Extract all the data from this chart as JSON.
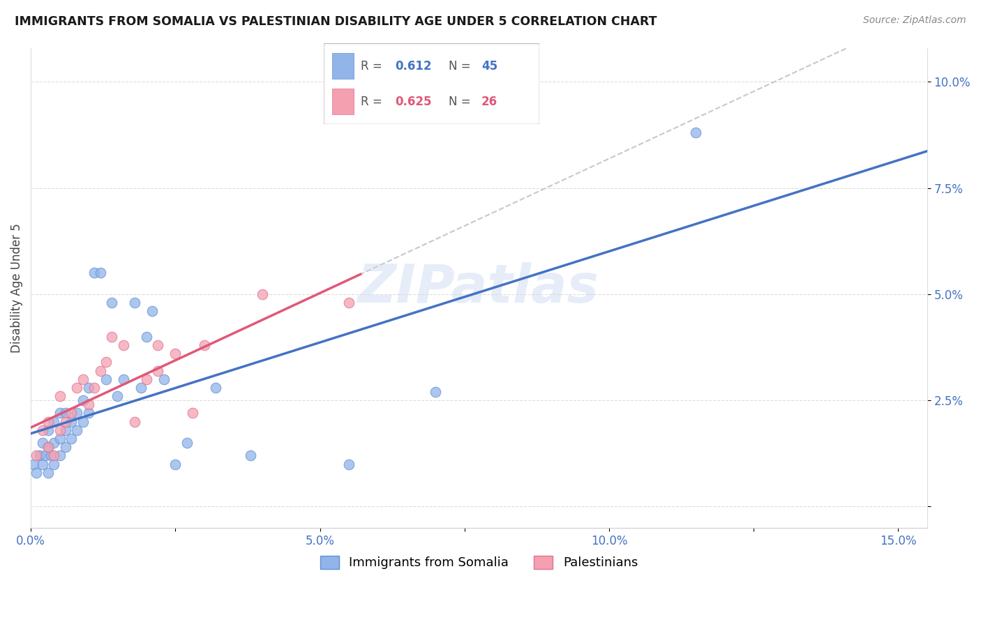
{
  "title": "IMMIGRANTS FROM SOMALIA VS PALESTINIAN DISABILITY AGE UNDER 5 CORRELATION CHART",
  "source": "Source: ZipAtlas.com",
  "ylabel": "Disability Age Under 5",
  "xlim": [
    0.0,
    0.155
  ],
  "ylim": [
    -0.005,
    0.108
  ],
  "xticks": [
    0.0,
    0.025,
    0.05,
    0.075,
    0.1,
    0.125,
    0.15
  ],
  "xticklabels": [
    "0.0%",
    "",
    "5.0%",
    "",
    "10.0%",
    "",
    "15.0%"
  ],
  "yticks": [
    0.0,
    0.025,
    0.05,
    0.075,
    0.1
  ],
  "yticklabels": [
    "",
    "2.5%",
    "5.0%",
    "7.5%",
    "10.0%"
  ],
  "somalia_color": "#92b4e8",
  "somalia_edge": "#6090d8",
  "palestinian_color": "#f4a0b0",
  "palestinian_edge": "#e07090",
  "regression_somalia_color": "#4472c4",
  "regression_palestinian_color": "#e05878",
  "regression_dashed_color": "#c8c8c8",
  "somalia_R": 0.612,
  "somalia_N": 45,
  "palestinian_R": 0.625,
  "palestinian_N": 26,
  "watermark": "ZIPatlas",
  "somalia_x": [
    0.0005,
    0.001,
    0.0015,
    0.002,
    0.002,
    0.0025,
    0.003,
    0.003,
    0.003,
    0.0035,
    0.004,
    0.004,
    0.004,
    0.005,
    0.005,
    0.005,
    0.006,
    0.006,
    0.006,
    0.007,
    0.007,
    0.008,
    0.008,
    0.009,
    0.009,
    0.01,
    0.01,
    0.011,
    0.012,
    0.013,
    0.014,
    0.015,
    0.016,
    0.018,
    0.019,
    0.02,
    0.021,
    0.023,
    0.025,
    0.027,
    0.032,
    0.038,
    0.055,
    0.07,
    0.115
  ],
  "somalia_y": [
    0.01,
    0.008,
    0.012,
    0.01,
    0.015,
    0.012,
    0.008,
    0.014,
    0.018,
    0.012,
    0.01,
    0.015,
    0.02,
    0.012,
    0.016,
    0.022,
    0.014,
    0.018,
    0.022,
    0.016,
    0.02,
    0.018,
    0.022,
    0.02,
    0.025,
    0.022,
    0.028,
    0.055,
    0.055,
    0.03,
    0.048,
    0.026,
    0.03,
    0.048,
    0.028,
    0.04,
    0.046,
    0.03,
    0.01,
    0.015,
    0.028,
    0.012,
    0.01,
    0.027,
    0.088
  ],
  "palestinian_x": [
    0.001,
    0.002,
    0.003,
    0.003,
    0.004,
    0.005,
    0.005,
    0.006,
    0.007,
    0.008,
    0.009,
    0.01,
    0.011,
    0.012,
    0.013,
    0.014,
    0.016,
    0.018,
    0.02,
    0.022,
    0.022,
    0.025,
    0.028,
    0.03,
    0.04,
    0.055
  ],
  "palestinian_y": [
    0.012,
    0.018,
    0.02,
    0.014,
    0.012,
    0.018,
    0.026,
    0.02,
    0.022,
    0.028,
    0.03,
    0.024,
    0.028,
    0.032,
    0.034,
    0.04,
    0.038,
    0.02,
    0.03,
    0.032,
    0.038,
    0.036,
    0.022,
    0.038,
    0.05,
    0.048
  ],
  "legend_somalia": "Immigrants from Somalia",
  "legend_palestinian": "Palestinians"
}
